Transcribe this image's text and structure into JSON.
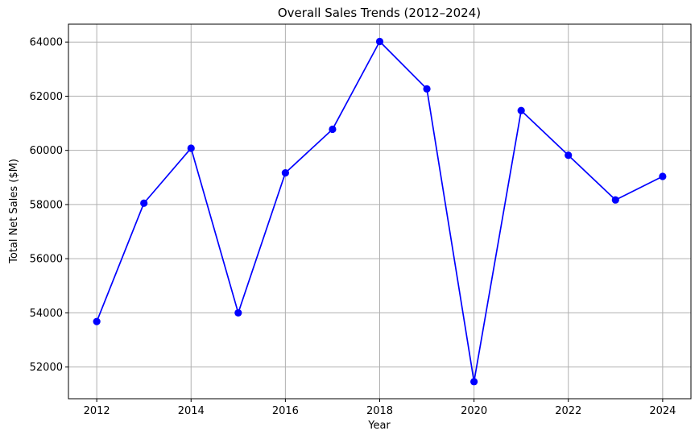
{
  "chart_data": {
    "type": "line",
    "title": "Overall Sales Trends (2012–2024)",
    "xlabel": "Year",
    "ylabel": "Total Net Sales ($M)",
    "x": [
      2012,
      2013,
      2014,
      2015,
      2016,
      2017,
      2018,
      2019,
      2020,
      2021,
      2022,
      2023,
      2024
    ],
    "series": [
      {
        "values": [
          53680,
          58050,
          60080,
          54000,
          59170,
          60780,
          64020,
          62270,
          51460,
          61470,
          59820,
          58170,
          59040
        ],
        "color": "#0000ff",
        "marker": "circle"
      }
    ],
    "xticks": [
      "2012",
      "2014",
      "2016",
      "2018",
      "2020",
      "2022",
      "2024"
    ],
    "yticks": [
      "52000",
      "54000",
      "56000",
      "58000",
      "60000",
      "62000",
      "64000"
    ],
    "xlim": [
      2011.4,
      2024.6
    ],
    "ylim": [
      50830,
      64660
    ],
    "grid": true,
    "colors": {
      "grid": "#b0b0b0",
      "axis": "#000000",
      "line": "#0000ff"
    }
  }
}
